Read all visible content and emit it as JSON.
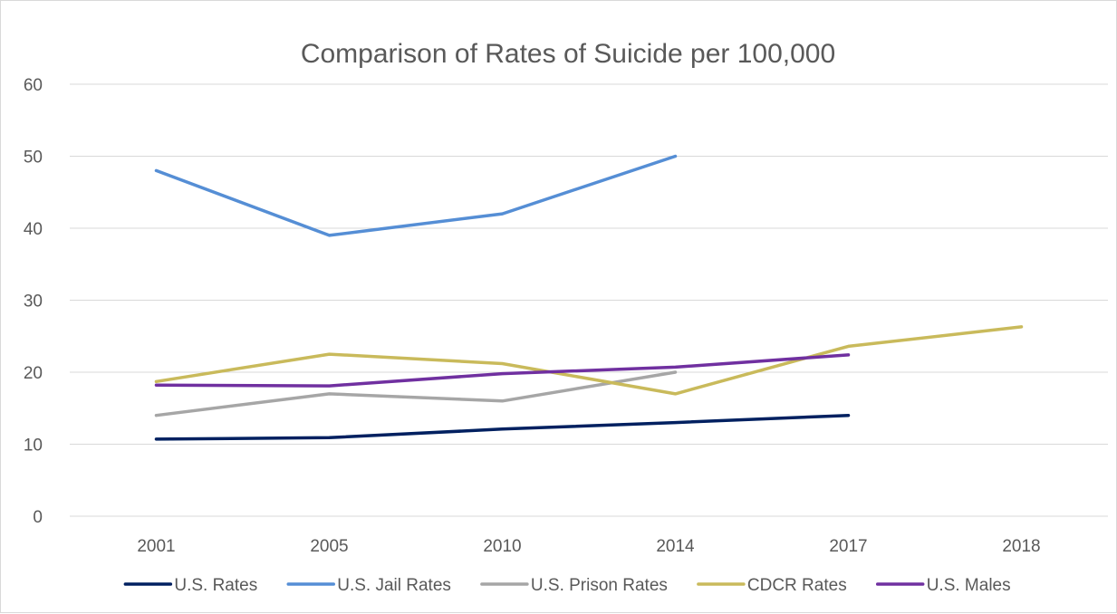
{
  "chart_data": {
    "type": "line",
    "title": "Comparison of Rates of Suicide per 100,000",
    "xlabel": "",
    "ylabel": "",
    "categories": [
      "2001",
      "2005",
      "2010",
      "2014",
      "2017",
      "2018"
    ],
    "ylim": [
      0,
      60
    ],
    "yticks": [
      "0",
      "10",
      "20",
      "30",
      "40",
      "50",
      "60"
    ],
    "grid": true,
    "legend_position": "bottom",
    "series": [
      {
        "name": "U.S. Rates",
        "color": "#002060",
        "values": [
          10.7,
          10.9,
          12.1,
          13.0,
          14.0,
          null
        ]
      },
      {
        "name": "U.S. Jail Rates",
        "color": "#558ED5",
        "values": [
          48,
          39,
          42,
          50,
          null,
          null
        ]
      },
      {
        "name": "U.S. Prison Rates",
        "color": "#A6A6A6",
        "values": [
          14,
          17,
          16,
          20,
          null,
          null
        ]
      },
      {
        "name": "CDCR Rates",
        "color": "#C9BA5B",
        "values": [
          18.7,
          22.5,
          21.2,
          17.0,
          23.6,
          26.3
        ]
      },
      {
        "name": "U.S. Males",
        "color": "#7030A0",
        "values": [
          18.2,
          18.1,
          19.8,
          20.7,
          22.4,
          null
        ]
      }
    ]
  }
}
